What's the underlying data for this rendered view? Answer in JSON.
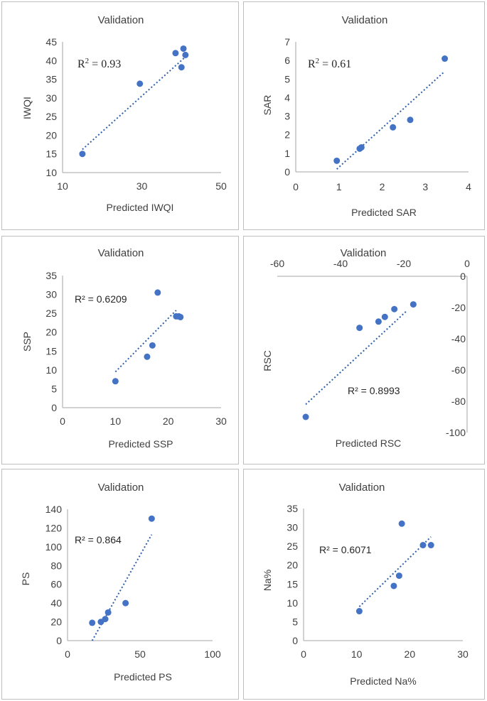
{
  "colors": {
    "marker": "#4472c4",
    "trendline": "#2f5fa8",
    "axis": "#a6a6a6",
    "text": "#404040"
  },
  "chart_data": [
    {
      "type": "scatter",
      "title": "Validation",
      "xlabel": "Predicted IWQI",
      "ylabel": "IWQI",
      "xlim": [
        10,
        50
      ],
      "ylim": [
        10,
        45
      ],
      "xticks": [
        "10",
        "30",
        "50"
      ],
      "yticks": [
        "10",
        "15",
        "20",
        "25",
        "30",
        "35",
        "40",
        "45"
      ],
      "r2_label": "R",
      "r2_value": " = 0.93",
      "points": [
        [
          15,
          15
        ],
        [
          29.5,
          33.8
        ],
        [
          38.5,
          42
        ],
        [
          40,
          38.2
        ],
        [
          40.5,
          43.2
        ],
        [
          41,
          41.5
        ]
      ],
      "trendline": [
        [
          15,
          16.2
        ],
        [
          41,
          41
        ]
      ],
      "grid": false
    },
    {
      "type": "scatter",
      "title": "Validation",
      "xlabel": "Predicted SAR",
      "ylabel": "SAR",
      "xlim": [
        0,
        4
      ],
      "ylim": [
        0,
        7
      ],
      "xticks": [
        "0",
        "1",
        "2",
        "3",
        "4"
      ],
      "yticks": [
        "0",
        "1",
        "2",
        "3",
        "4",
        "5",
        "6",
        "7"
      ],
      "r2_label": "R",
      "r2_value": " = 0.61",
      "points": [
        [
          0.95,
          0.6
        ],
        [
          1.48,
          1.25
        ],
        [
          1.52,
          1.32
        ],
        [
          2.25,
          2.4
        ],
        [
          2.65,
          2.8
        ],
        [
          3.45,
          6.1
        ]
      ],
      "trendline": [
        [
          0.95,
          0.15
        ],
        [
          3.42,
          5.35
        ]
      ],
      "grid": false
    },
    {
      "type": "scatter",
      "title": "Validation",
      "xlabel": "Predicted SSP",
      "ylabel": "SSP",
      "xlim": [
        0,
        30
      ],
      "ylim": [
        0,
        35
      ],
      "xticks": [
        "0",
        "10",
        "20",
        "30"
      ],
      "yticks": [
        "0",
        "5",
        "10",
        "15",
        "20",
        "25",
        "30",
        "35"
      ],
      "r2_value": "R² = 0.6209",
      "points": [
        [
          10,
          7
        ],
        [
          16,
          13.5
        ],
        [
          17,
          16.5
        ],
        [
          18,
          30.5
        ],
        [
          21.5,
          24.2
        ],
        [
          22,
          24.2
        ],
        [
          22.3,
          24
        ]
      ],
      "trendline": [
        [
          10,
          9.5
        ],
        [
          21.5,
          25.8
        ]
      ],
      "grid": false
    },
    {
      "type": "scatter",
      "title": "Validation",
      "xlabel": "Predicted RSC",
      "ylabel": "RSC",
      "xlim": [
        -60,
        0
      ],
      "ylim": [
        -100,
        0
      ],
      "xticks": [
        "-60",
        "-40",
        "-20",
        "0"
      ],
      "yticks": [
        "0",
        "-20",
        "-40",
        "-60",
        "-80",
        "-100"
      ],
      "r2_value": "R² = 0.8993",
      "points": [
        [
          -51,
          -90
        ],
        [
          -34,
          -33
        ],
        [
          -28,
          -29
        ],
        [
          -26,
          -26
        ],
        [
          -23,
          -21
        ],
        [
          -17,
          -18
        ]
      ],
      "trendline": [
        [
          -51,
          -82
        ],
        [
          -19,
          -22
        ]
      ],
      "grid": false
    },
    {
      "type": "scatter",
      "title": "Validation",
      "xlabel": "Predicted PS",
      "ylabel": "PS",
      "xlim": [
        0,
        100
      ],
      "ylim": [
        0,
        140
      ],
      "xticks": [
        "0",
        "50",
        "100"
      ],
      "yticks": [
        "0",
        "20",
        "40",
        "60",
        "80",
        "100",
        "120",
        "140"
      ],
      "r2_value": "R² = 0.864",
      "points": [
        [
          17,
          19
        ],
        [
          23,
          20
        ],
        [
          26,
          23
        ],
        [
          28,
          30
        ],
        [
          40,
          40
        ],
        [
          58,
          130
        ]
      ],
      "trendline": [
        [
          17,
          0
        ],
        [
          58,
          113
        ]
      ],
      "grid": false
    },
    {
      "type": "scatter",
      "title": "Validation",
      "xlabel": "Predicted Na%",
      "ylabel": "Na%",
      "xlim": [
        0,
        30
      ],
      "ylim": [
        0,
        35
      ],
      "xticks": [
        "0",
        "10",
        "20",
        "30"
      ],
      "yticks": [
        "0",
        "5",
        "10",
        "15",
        "20",
        "25",
        "30",
        "35"
      ],
      "r2_value": "R² = 0.6071",
      "points": [
        [
          10.5,
          7.8
        ],
        [
          17,
          14.5
        ],
        [
          18,
          17.2
        ],
        [
          18.5,
          31
        ],
        [
          22.5,
          25.3
        ],
        [
          24,
          25.3
        ]
      ],
      "trendline": [
        [
          10.5,
          9
        ],
        [
          24,
          27.5
        ]
      ],
      "grid": false
    }
  ]
}
